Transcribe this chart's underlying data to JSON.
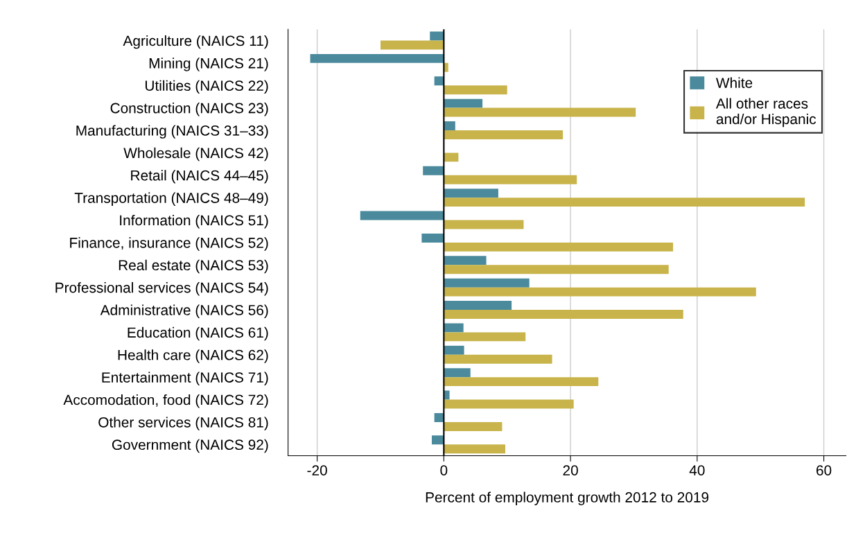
{
  "chart_data": {
    "type": "bar",
    "orientation": "horizontal",
    "xlabel": "Percent of employment growth 2012 to 2019",
    "categories": [
      "Agriculture (NAICS 11)",
      "Mining (NAICS 21)",
      "Utilities (NAICS 22)",
      "Construction (NAICS 23)",
      "Manufacturing (NAICS 31–33)",
      "Wholesale (NAICS 42)",
      "Retail (NAICS 44–45)",
      "Transportation (NAICS 48–49)",
      "Information (NAICS 51)",
      "Finance, insurance (NAICS 52)",
      "Real estate (NAICS 53)",
      "Professional services (NAICS 54)",
      "Administrative (NAICS 56)",
      "Education (NAICS 61)",
      "Health care (NAICS 62)",
      "Entertainment (NAICS 71)",
      "Accomodation, food (NAICS 72)",
      "Other services (NAICS 81)",
      "Government (NAICS 92)"
    ],
    "series": [
      {
        "name": "White",
        "color": "#4a8a9c",
        "values": [
          -2.2,
          -21.1,
          -1.5,
          6.1,
          1.8,
          null,
          -3.3,
          8.6,
          -13.2,
          -3.5,
          6.7,
          13.5,
          10.7,
          3.1,
          3.2,
          4.2,
          0.9,
          -1.5,
          -1.9
        ]
      },
      {
        "name": "All other races\nand/or Hispanic",
        "color": "#c8b44a",
        "values": [
          -10,
          0.7,
          10,
          30.3,
          18.8,
          2.3,
          21,
          57,
          12.6,
          36.2,
          35.5,
          49.3,
          37.8,
          12.9,
          17.1,
          24.4,
          20.5,
          9.2,
          9.7
        ]
      }
    ],
    "xlim": [
      -24.6,
      63.5
    ],
    "xticks": [
      -20,
      0,
      20,
      40,
      60
    ],
    "ref_lines": [
      {
        "axis": "x",
        "value": 0,
        "color": "#000000"
      }
    ],
    "grid": "x",
    "legend": "top right"
  }
}
